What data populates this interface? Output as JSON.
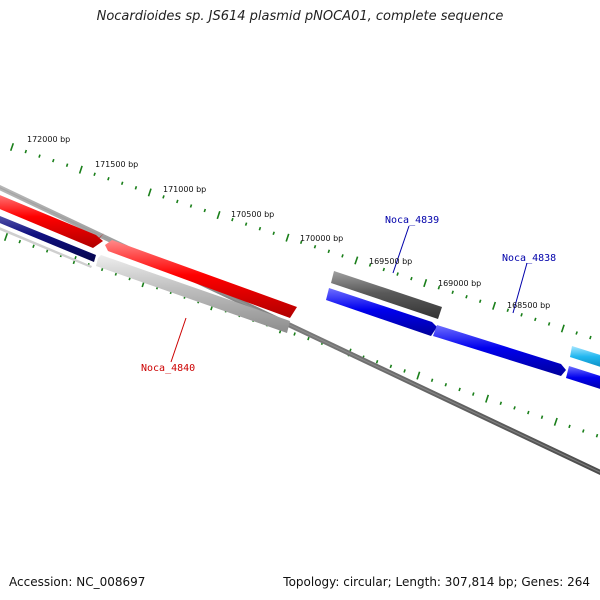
{
  "title": "Nocardioides sp. JS614 plasmid pNOCA01, complete sequence",
  "footer": {
    "accession": "Accession: NC_008697",
    "summary": "Topology: circular; Length: 307,814 bp; Genes: 264"
  },
  "colors": {
    "tick": "#1a7f1a",
    "backbone": "#7a7a7a",
    "red_gene": "#ff0000",
    "blue_gene": "#0000ee",
    "navy_gene": "#101080",
    "gray_gene": "#5a5a5a",
    "light_gray_gene": "#bdbdbd",
    "cyan_gene": "#21b7f0",
    "label_red": "#cc0000",
    "label_blue": "#0000aa"
  },
  "scale_labels": [
    "172000 bp",
    "171500 bp",
    "171000 bp",
    "170500 bp",
    "170000 bp",
    "169500 bp",
    "169000 bp",
    "168500 bp"
  ],
  "gene_labels": [
    "Noca_4839",
    "Noca_4838",
    "Noca_4840"
  ]
}
